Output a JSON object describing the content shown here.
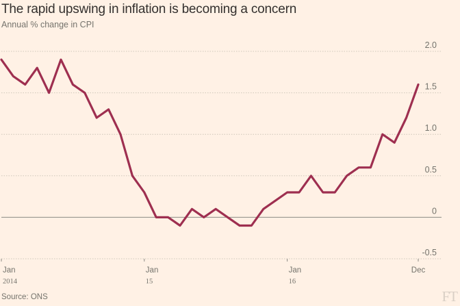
{
  "header": {
    "title": "The rapid upswing in inflation is becoming a concern",
    "subtitle": "Annual % change in CPI"
  },
  "footer": {
    "source": "Source: ONS",
    "logo": "FT"
  },
  "colors": {
    "background": "#fff1e5",
    "line": "#9e2f50",
    "grid": "#cec6b9",
    "zero_line": "#8c8a84",
    "text": "#74736c"
  },
  "chart_data": {
    "type": "line",
    "title": "The rapid upswing in inflation is becoming a concern",
    "ylabel": "Annual % change in CPI",
    "ylim": [
      -0.5,
      2.0
    ],
    "yticks": [
      2.0,
      1.5,
      1.0,
      0.5,
      0,
      -0.5
    ],
    "ytick_labels": [
      "2.0",
      "1.5",
      "1.0",
      "0.5",
      "0",
      "-0.5"
    ],
    "xticks": [
      {
        "month_index": 0,
        "label": "Jan",
        "year": "2014"
      },
      {
        "month_index": 12,
        "label": "Jan",
        "year": "15"
      },
      {
        "month_index": 24,
        "label": "Jan",
        "year": "16"
      },
      {
        "month_index": 35,
        "label": "Dec",
        "year": ""
      }
    ],
    "grid": true,
    "legend": "none",
    "series": [
      {
        "x": [
          "2014-01",
          "2014-02",
          "2014-03",
          "2014-04",
          "2014-05",
          "2014-06",
          "2014-07",
          "2014-08",
          "2014-09",
          "2014-10",
          "2014-11",
          "2014-12",
          "2015-01",
          "2015-02",
          "2015-03",
          "2015-04",
          "2015-05",
          "2015-06",
          "2015-07",
          "2015-08",
          "2015-09",
          "2015-10",
          "2015-11",
          "2015-12",
          "2016-01",
          "2016-02",
          "2016-03",
          "2016-04",
          "2016-05",
          "2016-06",
          "2016-07",
          "2016-08",
          "2016-09",
          "2016-10",
          "2016-11",
          "2016-12"
        ],
        "values": [
          1.9,
          1.7,
          1.6,
          1.8,
          1.5,
          1.9,
          1.6,
          1.5,
          1.2,
          1.3,
          1.0,
          0.5,
          0.3,
          0.0,
          0.0,
          -0.1,
          0.1,
          0.0,
          0.1,
          0.0,
          -0.1,
          -0.1,
          0.1,
          0.2,
          0.3,
          0.3,
          0.5,
          0.3,
          0.3,
          0.5,
          0.6,
          0.6,
          1.0,
          0.9,
          1.2,
          1.6
        ]
      }
    ]
  }
}
